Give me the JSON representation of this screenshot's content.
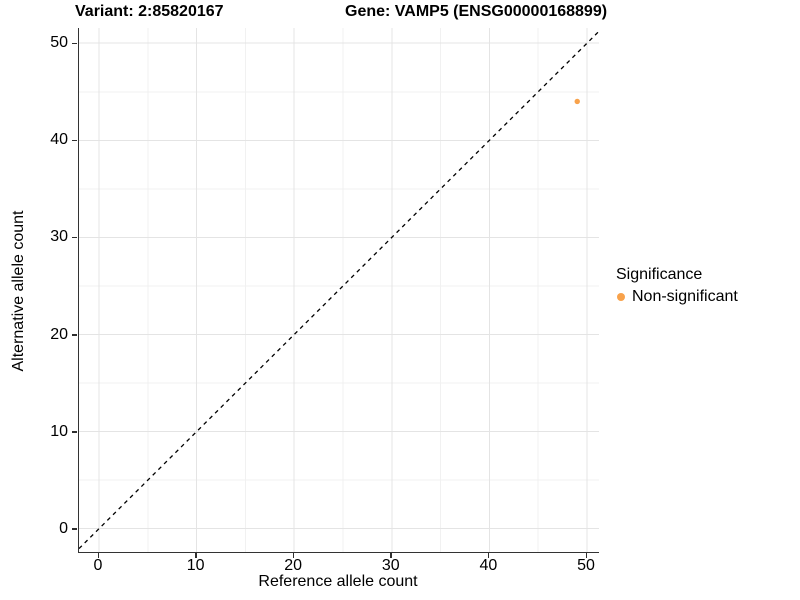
{
  "titles": {
    "variant": "Variant: 2:85820167",
    "gene": "Gene: VAMP5 (ENSG00000168899)"
  },
  "axes": {
    "x": {
      "label": "Reference allele count",
      "tick_labels": [
        "0",
        "10",
        "20",
        "30",
        "40",
        "50"
      ]
    },
    "y": {
      "label": "Alternative allele count",
      "tick_labels": [
        "0",
        "10",
        "20",
        "30",
        "40",
        "50"
      ]
    }
  },
  "legend": {
    "title": "Significance",
    "items": [
      {
        "label": "Non-significant",
        "color": "#F8A24B"
      }
    ]
  },
  "colors": {
    "point": "#F8A24B",
    "grid_major": "#E4E4E4",
    "grid_minor": "#F1F1F1",
    "axis_line": "#333333",
    "identity_line": "#000000",
    "background": "#FFFFFF"
  },
  "chart_data": {
    "type": "scatter",
    "title": "Variant: 2:85820167 | Gene: VAMP5 (ENSG00000168899)",
    "xlabel": "Reference allele count",
    "ylabel": "Alternative allele count",
    "x_ticks": [
      0,
      10,
      20,
      30,
      40,
      50
    ],
    "y_ticks": [
      0,
      10,
      20,
      30,
      40,
      50
    ],
    "xlim": [
      -2.1,
      51.2
    ],
    "ylim": [
      -2.4,
      51.6
    ],
    "grid": "on",
    "legend_position": "right",
    "reference_line": {
      "type": "identity_y_equals_x",
      "style": "dashed",
      "color": "#000000"
    },
    "series": [
      {
        "name": "Non-significant",
        "color": "#F8A24B",
        "points": [
          {
            "x": 49,
            "y": 44
          }
        ]
      }
    ]
  }
}
